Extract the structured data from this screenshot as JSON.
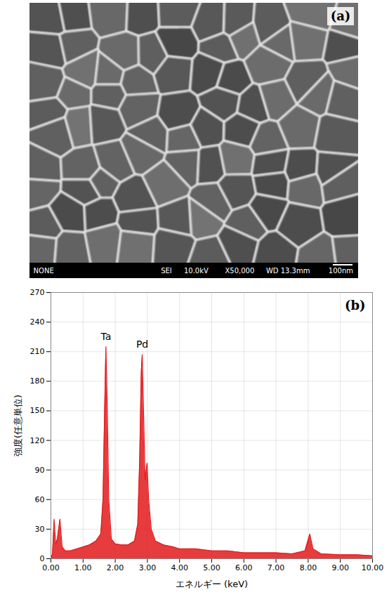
{
  "panel_a": {
    "label": "(a)",
    "info_bar": [
      "NONE",
      "SEI",
      "10.0kV",
      "X50,000",
      "WD 13.3mm",
      "100nm"
    ]
  },
  "chart_data": {
    "type": "area",
    "panel_label": "(b)",
    "color": "#e31a1c",
    "x_label": "エネルギー (keV)",
    "y_label": "強度(任意単位)",
    "x": [
      0.0,
      0.05,
      0.1,
      0.15,
      0.2,
      0.28,
      0.35,
      0.45,
      0.6,
      0.8,
      1.0,
      1.2,
      1.4,
      1.55,
      1.62,
      1.67,
      1.71,
      1.75,
      1.8,
      1.88,
      2.0,
      2.2,
      2.4,
      2.6,
      2.7,
      2.76,
      2.81,
      2.84,
      2.88,
      2.93,
      2.99,
      3.04,
      3.12,
      3.25,
      3.5,
      3.8,
      4.0,
      4.5,
      5.0,
      5.5,
      6.0,
      6.5,
      7.0,
      7.5,
      7.9,
      8.05,
      8.15,
      8.4,
      9.0,
      9.5,
      10.0
    ],
    "values": [
      0,
      5,
      40,
      15,
      20,
      40,
      12,
      8,
      8,
      10,
      12,
      14,
      18,
      25,
      60,
      150,
      215,
      160,
      60,
      20,
      15,
      14,
      14,
      18,
      35,
      100,
      190,
      207,
      150,
      80,
      97,
      60,
      30,
      18,
      14,
      12,
      10,
      10,
      8,
      8,
      6,
      6,
      6,
      5,
      8,
      25,
      10,
      5,
      4,
      4,
      3
    ],
    "xlim": [
      0,
      10
    ],
    "xticks": [
      {
        "value": 0,
        "label": "0.00"
      },
      {
        "value": 1,
        "label": "1.00"
      },
      {
        "value": 2,
        "label": "2.00"
      },
      {
        "value": 3,
        "label": "3.00"
      },
      {
        "value": 4,
        "label": "4.00"
      },
      {
        "value": 5,
        "label": "5.00"
      },
      {
        "value": 6,
        "label": "6.00"
      },
      {
        "value": 7,
        "label": "7.00"
      },
      {
        "value": 8,
        "label": "8.00"
      },
      {
        "value": 9,
        "label": "9.00"
      },
      {
        "value": 10,
        "label": "10.00"
      }
    ],
    "ylim": [
      0,
      270
    ],
    "yticks": [
      0,
      30,
      60,
      90,
      120,
      150,
      180,
      210,
      240,
      270
    ],
    "grid": true,
    "annotations": [
      {
        "text": "Ta",
        "x": 1.71,
        "y": 215
      },
      {
        "text": "Pd",
        "x": 2.84,
        "y": 207
      }
    ]
  }
}
